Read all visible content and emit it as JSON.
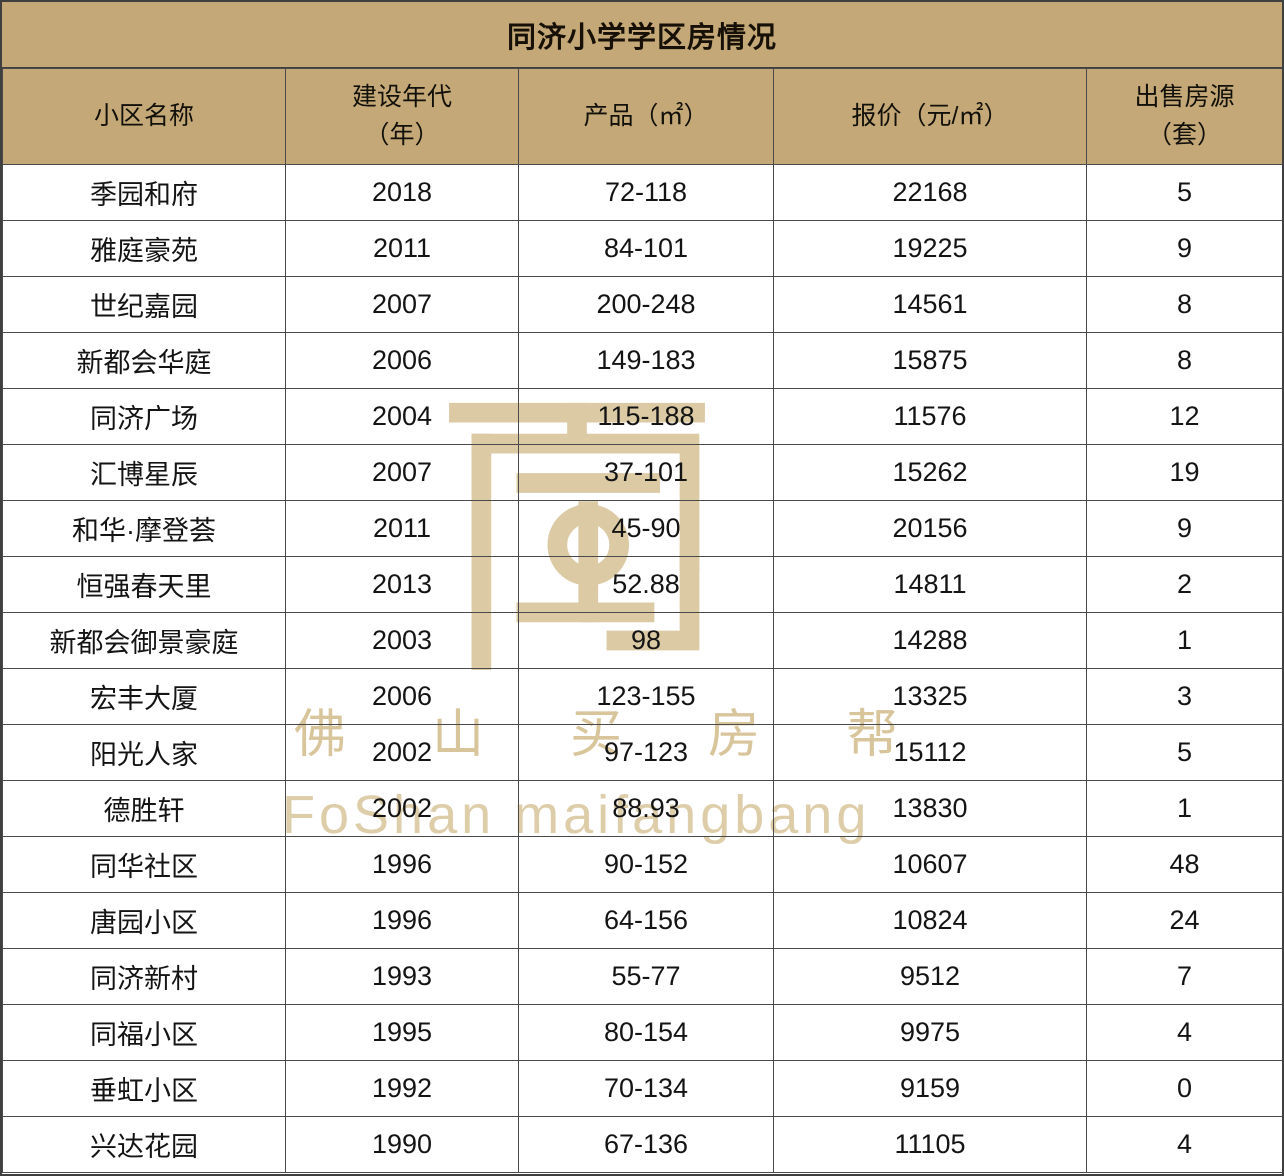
{
  "title": "同济小学学区房情况",
  "table": {
    "headers_display": [
      "小区名称",
      "建设年代\n（年）",
      "产品（㎡）",
      "报价（元/㎡）",
      "出售房源\n（套）"
    ]
  },
  "chart_data": {
    "type": "table",
    "title": "同济小学学区房情况",
    "columns": [
      "小区名称",
      "建设年代（年）",
      "产品（㎡）",
      "报价（元/㎡）",
      "出售房源（套）"
    ],
    "rows": [
      [
        "季园和府",
        "2018",
        "72-118",
        "22168",
        "5"
      ],
      [
        "雅庭豪苑",
        "2011",
        "84-101",
        "19225",
        "9"
      ],
      [
        "世纪嘉园",
        "2007",
        "200-248",
        "14561",
        "8"
      ],
      [
        "新都会华庭",
        "2006",
        "149-183",
        "15875",
        "8"
      ],
      [
        "同济广场",
        "2004",
        "115-188",
        "11576",
        "12"
      ],
      [
        "汇博星辰",
        "2007",
        "37-101",
        "15262",
        "19"
      ],
      [
        "和华·摩登荟",
        "2011",
        "45-90",
        "20156",
        "9"
      ],
      [
        "恒强春天里",
        "2013",
        "52.88",
        "14811",
        "2"
      ],
      [
        "新都会御景豪庭",
        "2003",
        "98",
        "14288",
        "1"
      ],
      [
        "宏丰大厦",
        "2006",
        "123-155",
        "13325",
        "3"
      ],
      [
        "阳光人家",
        "2002",
        "97-123",
        "15112",
        "5"
      ],
      [
        "德胜轩",
        "2002",
        "88.93",
        "13830",
        "1"
      ],
      [
        "同华社区",
        "1996",
        "90-152",
        "10607",
        "48"
      ],
      [
        "唐园小区",
        "1996",
        "64-156",
        "10824",
        "24"
      ],
      [
        "同济新村",
        "1993",
        "55-77",
        "9512",
        "7"
      ],
      [
        "同福小区",
        "1995",
        "80-154",
        "9975",
        "4"
      ],
      [
        "垂虹小区",
        "1992",
        "70-134",
        "9159",
        "0"
      ],
      [
        "兴达花园",
        "1990",
        "67-136",
        "11105",
        "4"
      ]
    ]
  },
  "watermark": {
    "cn": "佛山买房帮",
    "en": "FoShan maifangbang"
  },
  "colors": {
    "header_bg": "#c4a877",
    "border_dark": "#3f3f3f",
    "border_mid": "#4a4a4a",
    "watermark_color": "#d8c59b"
  }
}
